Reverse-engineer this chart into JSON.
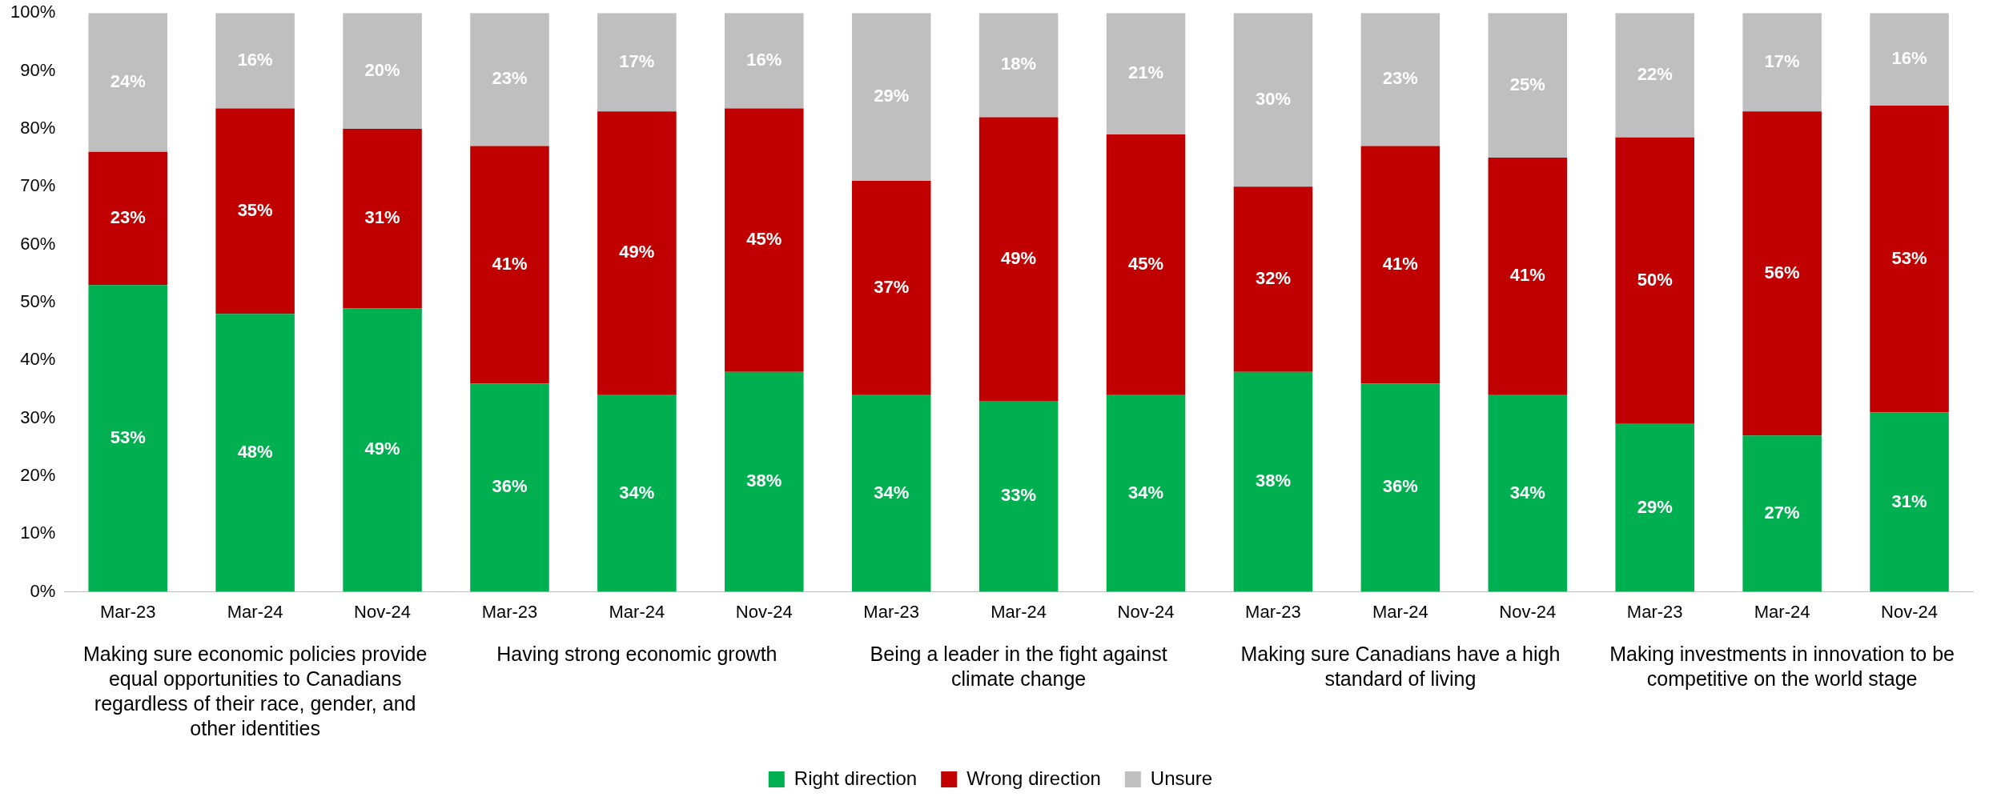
{
  "chart_data": {
    "type": "bar",
    "stacked": true,
    "categories": [
      "Mar-23",
      "Mar-24",
      "Nov-24",
      "Mar-23",
      "Mar-24",
      "Nov-24",
      "Mar-23",
      "Mar-24",
      "Nov-24",
      "Mar-23",
      "Mar-24",
      "Nov-24",
      "Mar-23",
      "Mar-24",
      "Nov-24"
    ],
    "series": [
      {
        "name": "Right direction",
        "color": "#00b050",
        "values": [
          53,
          48,
          49,
          36,
          34,
          38,
          34,
          33,
          34,
          38,
          36,
          34,
          29,
          27,
          31
        ],
        "value_labels": [
          "53%",
          "48%",
          "49%",
          "36%",
          "34%",
          "38%",
          "34%",
          "33%",
          "34%",
          "38%",
          "36%",
          "34%",
          "29%",
          "27%",
          "31%"
        ]
      },
      {
        "name": "Wrong direction",
        "color": "#c00000",
        "values": [
          23,
          35.5,
          31,
          41,
          49,
          45.5,
          37,
          49,
          45,
          32,
          41,
          41,
          49.5,
          56,
          53
        ],
        "value_labels": [
          "23%",
          "35%",
          "31%",
          "41%",
          "49%",
          "45%",
          "37%",
          "49%",
          "45%",
          "32%",
          "41%",
          "41%",
          "50%",
          "56%",
          "53%"
        ]
      },
      {
        "name": "Unsure",
        "color": "#bfbfbf",
        "values": [
          24,
          16.5,
          20,
          23,
          17,
          16.5,
          29,
          18,
          21,
          30,
          23,
          25,
          21.5,
          17,
          16
        ],
        "value_labels": [
          "24%",
          "16%",
          "20%",
          "23%",
          "17%",
          "16%",
          "29%",
          "18%",
          "21%",
          "30%",
          "23%",
          "25%",
          "22%",
          "17%",
          "16%"
        ]
      }
    ],
    "ylim": [
      0,
      100
    ],
    "yticks": [
      {
        "value": 0,
        "label": "0%"
      },
      {
        "value": 10,
        "label": "10%"
      },
      {
        "value": 20,
        "label": "20%"
      },
      {
        "value": 30,
        "label": "30%"
      },
      {
        "value": 40,
        "label": "40%"
      },
      {
        "value": 50,
        "label": "50%"
      },
      {
        "value": 60,
        "label": "60%"
      },
      {
        "value": 70,
        "label": "70%"
      },
      {
        "value": 80,
        "label": "80%"
      },
      {
        "value": 90,
        "label": "90%"
      },
      {
        "value": 100,
        "label": "100%"
      }
    ],
    "grid": false,
    "legend": "bottom",
    "annotations": [
      "Making sure economic policies provide equal opportunities to Canadians regardless of their race, gender, and other identities",
      "Having strong economic growth",
      "Being a leader in the fight against climate change",
      "Making sure Canadians have a high standard of living",
      "Making investments in innovation to be competitive on the world stage"
    ]
  }
}
